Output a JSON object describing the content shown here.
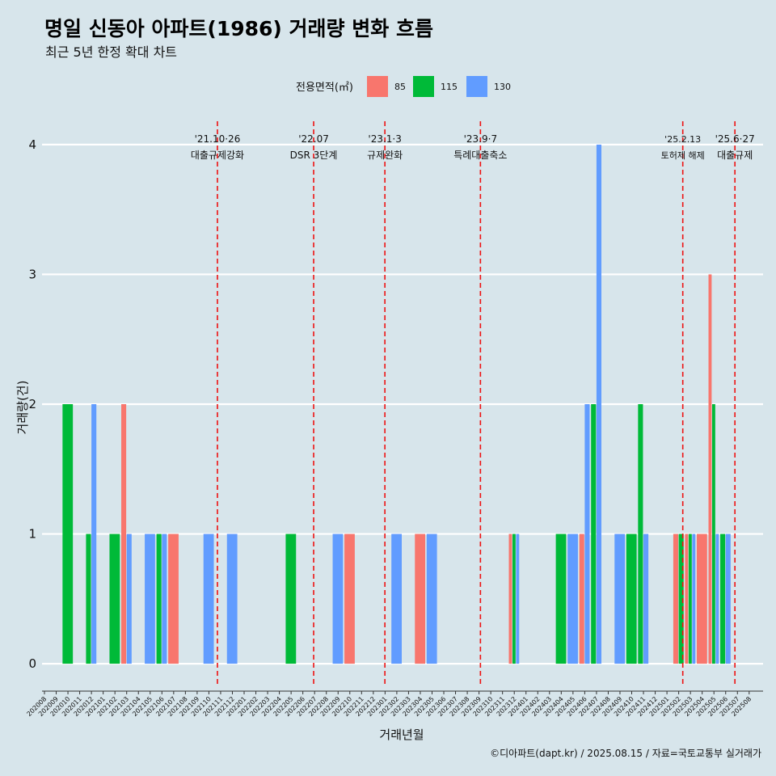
{
  "colors": {
    "background": "#d7e5eb",
    "gridline": "#ffffff",
    "event_line": "#ee1111",
    "series": [
      "#f8766d",
      "#00ba38",
      "#619cff"
    ]
  },
  "chart_data": {
    "type": "bar",
    "title": "명일 신동아 아파트(1986) 거래량 변화 흐름",
    "subtitle": "최근 5년 한정 확대 차트",
    "xlabel": "거래년월",
    "ylabel": "거래량(건)",
    "ylim": [
      -0.18,
      4.18
    ],
    "yticks": [
      0,
      1,
      2,
      3,
      4
    ],
    "grid": true,
    "legend": {
      "title": "전용면적(㎡)",
      "position": "top",
      "entries": [
        "85",
        "115",
        "130"
      ]
    },
    "categories": [
      "202008",
      "202009",
      "202010",
      "202011",
      "202012",
      "202101",
      "202102",
      "202103",
      "202104",
      "202105",
      "202106",
      "202107",
      "202108",
      "202109",
      "202110",
      "202111",
      "202112",
      "202201",
      "202202",
      "202203",
      "202204",
      "202205",
      "202206",
      "202207",
      "202208",
      "202209",
      "202210",
      "202211",
      "202212",
      "202301",
      "202302",
      "202303",
      "202304",
      "202305",
      "202306",
      "202307",
      "202308",
      "202309",
      "202310",
      "202311",
      "202312",
      "202401",
      "202402",
      "202403",
      "202404",
      "202405",
      "202406",
      "202407",
      "202408",
      "202409",
      "202410",
      "202411",
      "202412",
      "202501",
      "202502",
      "202503",
      "202504",
      "202505",
      "202506",
      "202507",
      "202508"
    ],
    "bars": [
      {
        "month": "202010",
        "series": "115",
        "value": 2,
        "slots": [
          "115"
        ]
      },
      {
        "month": "202012",
        "series": "115",
        "value": 1,
        "slots": [
          "115",
          "130"
        ]
      },
      {
        "month": "202012",
        "series": "130",
        "value": 2,
        "slots": [
          "115",
          "130"
        ]
      },
      {
        "month": "202102",
        "series": "115",
        "value": 1,
        "slots": [
          "115"
        ]
      },
      {
        "month": "202103",
        "series": "85",
        "value": 2,
        "slots": [
          "85",
          "130"
        ]
      },
      {
        "month": "202103",
        "series": "130",
        "value": 1,
        "slots": [
          "85",
          "130"
        ]
      },
      {
        "month": "202105",
        "series": "130",
        "value": 1,
        "slots": [
          "130"
        ]
      },
      {
        "month": "202106",
        "series": "115",
        "value": 1,
        "slots": [
          "115",
          "130"
        ]
      },
      {
        "month": "202106",
        "series": "130",
        "value": 1,
        "slots": [
          "115",
          "130"
        ]
      },
      {
        "month": "202107",
        "series": "85",
        "value": 1,
        "slots": [
          "85"
        ]
      },
      {
        "month": "202110",
        "series": "130",
        "value": 1,
        "slots": [
          "130"
        ]
      },
      {
        "month": "202112",
        "series": "130",
        "value": 1,
        "slots": [
          "130"
        ]
      },
      {
        "month": "202205",
        "series": "115",
        "value": 1,
        "slots": [
          "115"
        ]
      },
      {
        "month": "202209",
        "series": "130",
        "value": 1,
        "slots": [
          "130"
        ]
      },
      {
        "month": "202210",
        "series": "85",
        "value": 1,
        "slots": [
          "85"
        ]
      },
      {
        "month": "202302",
        "series": "130",
        "value": 1,
        "slots": [
          "130"
        ]
      },
      {
        "month": "202304",
        "series": "85",
        "value": 1,
        "slots": [
          "85"
        ]
      },
      {
        "month": "202305",
        "series": "130",
        "value": 1,
        "slots": [
          "130"
        ]
      },
      {
        "month": "202312",
        "series": "85",
        "value": 1,
        "slots": [
          "85",
          "115",
          "130"
        ]
      },
      {
        "month": "202312",
        "series": "115",
        "value": 1,
        "slots": [
          "85",
          "115",
          "130"
        ]
      },
      {
        "month": "202312",
        "series": "130",
        "value": 1,
        "slots": [
          "85",
          "115",
          "130"
        ]
      },
      {
        "month": "202404",
        "series": "115",
        "value": 1,
        "slots": [
          "115"
        ]
      },
      {
        "month": "202405",
        "series": "130",
        "value": 1,
        "slots": [
          "130"
        ]
      },
      {
        "month": "202406",
        "series": "85",
        "value": 1,
        "slots": [
          "85",
          "130"
        ]
      },
      {
        "month": "202406",
        "series": "130",
        "value": 2,
        "slots": [
          "85",
          "130"
        ]
      },
      {
        "month": "202407",
        "series": "115",
        "value": 2,
        "slots": [
          "115",
          "130"
        ]
      },
      {
        "month": "202407",
        "series": "130",
        "value": 4,
        "slots": [
          "115",
          "130"
        ]
      },
      {
        "month": "202409",
        "series": "130",
        "value": 1,
        "slots": [
          "130"
        ]
      },
      {
        "month": "202410",
        "series": "115",
        "value": 1,
        "slots": [
          "115"
        ]
      },
      {
        "month": "202411",
        "series": "115",
        "value": 2,
        "slots": [
          "115",
          "130"
        ]
      },
      {
        "month": "202411",
        "series": "130",
        "value": 1,
        "slots": [
          "115",
          "130"
        ]
      },
      {
        "month": "202502",
        "series": "85",
        "value": 1,
        "slots": [
          "85",
          "115"
        ]
      },
      {
        "month": "202502",
        "series": "115",
        "value": 1,
        "slots": [
          "85",
          "115"
        ]
      },
      {
        "month": "202503",
        "series": "85",
        "value": 1,
        "slots": [
          "85",
          "115",
          "130"
        ]
      },
      {
        "month": "202503",
        "series": "115",
        "value": 1,
        "slots": [
          "85",
          "115",
          "130"
        ]
      },
      {
        "month": "202503",
        "series": "130",
        "value": 1,
        "slots": [
          "85",
          "115",
          "130"
        ]
      },
      {
        "month": "202504",
        "series": "85",
        "value": 1,
        "slots": [
          "85"
        ]
      },
      {
        "month": "202505",
        "series": "85",
        "value": 3,
        "slots": [
          "85",
          "115",
          "130"
        ]
      },
      {
        "month": "202505",
        "series": "115",
        "value": 2,
        "slots": [
          "85",
          "115",
          "130"
        ]
      },
      {
        "month": "202505",
        "series": "130",
        "value": 1,
        "slots": [
          "85",
          "115",
          "130"
        ]
      },
      {
        "month": "202506",
        "series": "115",
        "value": 1,
        "slots": [
          "115",
          "130"
        ]
      },
      {
        "month": "202506",
        "series": "130",
        "value": 1,
        "slots": [
          "115",
          "130"
        ]
      }
    ],
    "events": [
      {
        "date": "2021-10-26",
        "line1": "'21.10·26",
        "line2": "대출규제강화"
      },
      {
        "date": "2022-07-01",
        "line1": "'22.07",
        "line2": "DSR 3단계"
      },
      {
        "date": "2023-01-03",
        "line1": "'23.1·3",
        "line2": "규제완화"
      },
      {
        "date": "2023-09-07",
        "line1": "'23.9·7",
        "line2": "특례대출축소"
      },
      {
        "date": "2025-02-13",
        "line1": "'25.2.13",
        "line2": "토허제 해제"
      },
      {
        "date": "2025-06-27",
        "line1": "'25.6·27",
        "line2": "대출규제"
      }
    ]
  },
  "caption": "©디아파트(dapt.kr) / 2025.08.15 / 자료=국토교통부 실거래가"
}
